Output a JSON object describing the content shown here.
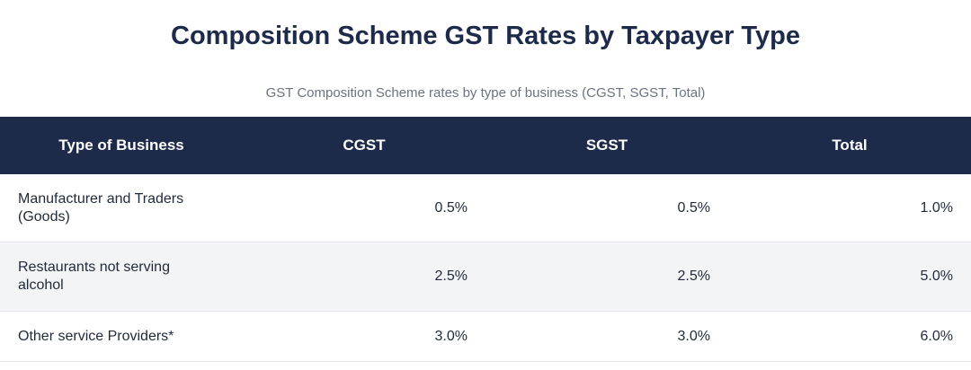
{
  "title": "Composition Scheme GST Rates by Taxpayer Type",
  "subtitle": "GST Composition Scheme rates by type of business (CGST, SGST, Total)",
  "table": {
    "headers": [
      "Type of Business",
      "CGST",
      "SGST",
      "Total"
    ],
    "rows": [
      {
        "business": "Manufacturer and Traders (Goods)",
        "cgst": "0.5%",
        "sgst": "0.5%",
        "total": "1.0%"
      },
      {
        "business": "Restaurants not serving alcohol",
        "cgst": "2.5%",
        "sgst": "2.5%",
        "total": "5.0%"
      },
      {
        "business": "Other service Providers*",
        "cgst": "3.0%",
        "sgst": "3.0%",
        "total": "6.0%"
      }
    ]
  }
}
